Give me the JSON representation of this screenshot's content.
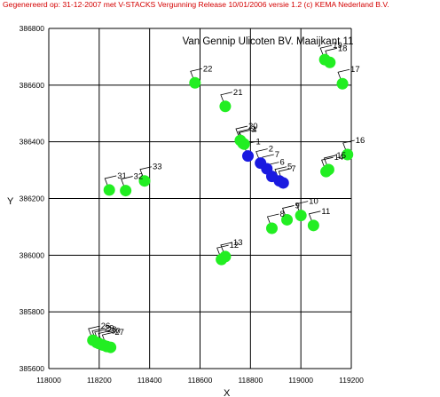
{
  "header": {
    "text": "Gegenereerd op: 31-12-2007 met V-STACKS Vergunning    Release 10/01/2006 versie 1.2 (c) KEMA Nederland B.V."
  },
  "colors": {
    "grid": "#000000",
    "green_point": "#22ee22",
    "blue_point": "#1a1ae0",
    "header_text": "#d40000"
  },
  "chart_data": {
    "type": "scatter",
    "title": "Van Gennip Ulicoten BV. Maaijkant 11",
    "xlabel": "X",
    "ylabel": "Y",
    "xlim": [
      118000,
      119200
    ],
    "ylim": [
      385600,
      386800
    ],
    "x_ticks": [
      "118000",
      "118200",
      "118400",
      "118600",
      "118800",
      "119000",
      "119200"
    ],
    "y_ticks": [
      "385600",
      "385800",
      "386000",
      "386200",
      "386400",
      "386600",
      "386800"
    ],
    "grid": true,
    "points": [
      {
        "label": "1",
        "x": 118790,
        "y": 386350,
        "color": "blue"
      },
      {
        "label": "2",
        "x": 118840,
        "y": 386325,
        "color": "blue"
      },
      {
        "label": "3",
        "x": 118770,
        "y": 386395,
        "color": "green"
      },
      {
        "label": "4",
        "x": 118775,
        "y": 386392,
        "color": "green"
      },
      {
        "label": "5",
        "x": 118915,
        "y": 386262,
        "color": "blue"
      },
      {
        "label": "6",
        "x": 118885,
        "y": 386278,
        "color": "blue"
      },
      {
        "label": "7",
        "x": 118930,
        "y": 386255,
        "color": "blue"
      },
      {
        "label": "7",
        "x": 118865,
        "y": 386305,
        "color": "blue"
      },
      {
        "label": "8",
        "x": 118885,
        "y": 386095,
        "color": "green"
      },
      {
        "label": "9",
        "x": 118945,
        "y": 386125,
        "color": "green"
      },
      {
        "label": "10",
        "x": 119000,
        "y": 386140,
        "color": "green"
      },
      {
        "label": "11",
        "x": 119050,
        "y": 386105,
        "color": "green"
      },
      {
        "label": "12",
        "x": 118685,
        "y": 385985,
        "color": "green"
      },
      {
        "label": "13",
        "x": 118700,
        "y": 385995,
        "color": "green"
      },
      {
        "label": "14",
        "x": 119100,
        "y": 386295,
        "color": "green"
      },
      {
        "label": "15",
        "x": 119110,
        "y": 386302,
        "color": "green"
      },
      {
        "label": "16",
        "x": 119185,
        "y": 386355,
        "color": "green"
      },
      {
        "label": "17",
        "x": 119165,
        "y": 386605,
        "color": "green"
      },
      {
        "label": "18",
        "x": 119115,
        "y": 386680,
        "color": "green"
      },
      {
        "label": "19",
        "x": 119095,
        "y": 386690,
        "color": "green"
      },
      {
        "label": "20",
        "x": 118760,
        "y": 386405,
        "color": "green"
      },
      {
        "label": "21",
        "x": 118700,
        "y": 386525,
        "color": "green"
      },
      {
        "label": "22",
        "x": 118580,
        "y": 386608,
        "color": "green"
      },
      {
        "label": "26",
        "x": 118175,
        "y": 385700,
        "color": "green"
      },
      {
        "label": "27",
        "x": 118230,
        "y": 385678,
        "color": "green"
      },
      {
        "label": "28",
        "x": 118200,
        "y": 385688,
        "color": "green"
      },
      {
        "label": "29",
        "x": 118190,
        "y": 385692,
        "color": "green"
      },
      {
        "label": "30",
        "x": 118215,
        "y": 385683,
        "color": "green"
      },
      {
        "label": "31",
        "x": 118240,
        "y": 386230,
        "color": "green"
      },
      {
        "label": "32",
        "x": 118305,
        "y": 386228,
        "color": "green"
      },
      {
        "label": "33",
        "x": 118380,
        "y": 386262,
        "color": "green"
      },
      {
        "label": "",
        "x": 118245,
        "y": 385675,
        "color": "green"
      }
    ]
  }
}
